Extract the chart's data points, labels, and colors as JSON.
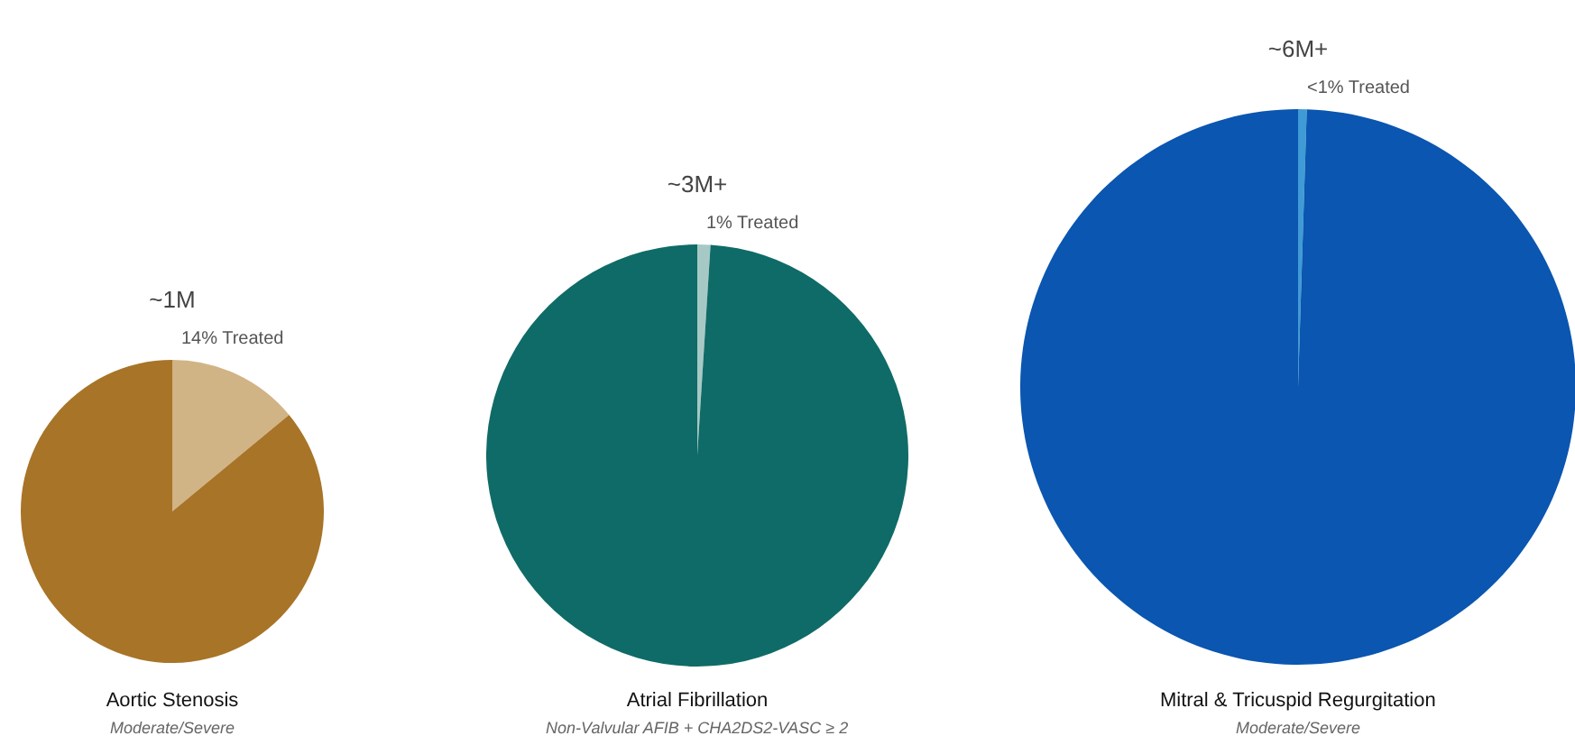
{
  "chart_data": [
    {
      "type": "pie",
      "title": "~1M",
      "xlabel": "Aortic Stenosis",
      "annotations": [
        "Moderate/Severe"
      ],
      "categories": [
        null,
        null
      ],
      "values": [
        14,
        86
      ],
      "value_labels": [
        "14% Treated",
        null
      ],
      "colors": [
        "#d1b485",
        "#a87427"
      ]
    },
    {
      "type": "pie",
      "title": "~3M+",
      "xlabel": "Atrial Fibrillation",
      "annotations": [
        "Non-Valvular AFIB + CHA2DS2-VASC ≥ 2"
      ],
      "categories": [
        null,
        null
      ],
      "values": [
        1,
        99
      ],
      "value_labels": [
        "1% Treated",
        null
      ],
      "colors": [
        "#a7c9c6",
        "#0f6b67"
      ]
    },
    {
      "type": "pie",
      "title": "~6M+",
      "xlabel": "Mitral & Tricuspid Regurgitation",
      "annotations": [
        "Moderate/Severe"
      ],
      "categories": [
        null,
        null
      ],
      "values": [
        0.5,
        99.5
      ],
      "value_labels": [
        "<1% Treated",
        null
      ],
      "colors": [
        "#3f9bd6",
        "#0a56b0"
      ]
    }
  ]
}
